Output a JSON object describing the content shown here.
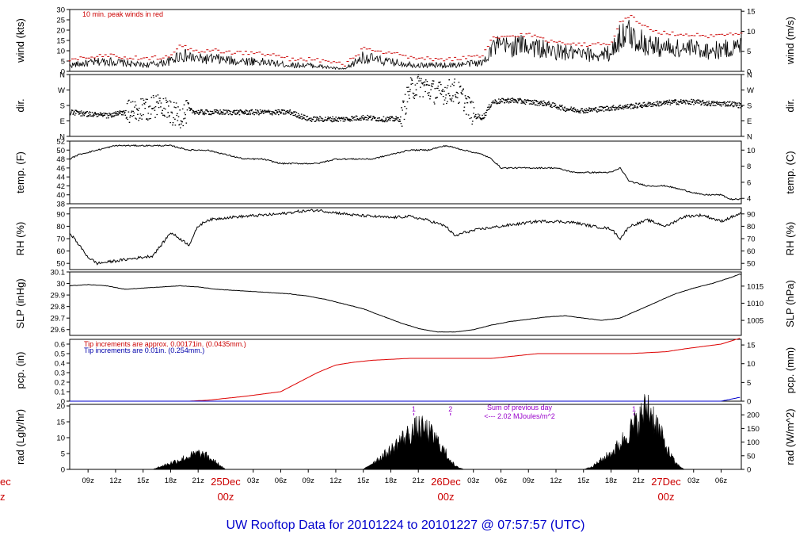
{
  "title": "UW Rooftop Data for 20101224  to  20101227 @ 07:57:57  (UTC)",
  "colors": {
    "black": "#000000",
    "peak": "#cc0000",
    "precip_red": "#dd0000",
    "precip_blue": "#0000cc",
    "purple": "#9900cc",
    "title": "#0000cc"
  },
  "x_ticks": [
    "09z",
    "12z",
    "15z",
    "18z",
    "21z",
    "03z",
    "06z",
    "09z",
    "12z",
    "15z",
    "18z",
    "21z",
    "03z",
    "06z",
    "09z",
    "12z",
    "15z",
    "18z",
    "21z",
    "03z",
    "06z"
  ],
  "x_tick_hours": [
    9,
    12,
    15,
    18,
    21,
    27,
    30,
    33,
    36,
    39,
    42,
    45,
    51,
    54,
    57,
    60,
    63,
    66,
    69,
    75,
    78
  ],
  "day_labels": [
    {
      "date": "25Dec",
      "hour": "00z",
      "at": 24
    },
    {
      "date": "26Dec",
      "hour": "00z",
      "at": 48
    },
    {
      "date": "27Dec",
      "hour": "00z",
      "at": 72
    }
  ],
  "left_edge_day": {
    "date": "ec",
    "hour": "z"
  },
  "chart_data": [
    {
      "type": "line",
      "name": "wind",
      "ylabel": "wind (kts)",
      "ylabel_right": "wind (m/s)",
      "ylim": [
        0,
        30
      ],
      "yticks": [
        0,
        5,
        10,
        15,
        20,
        25,
        30
      ],
      "right_ticks": [
        {
          "v": 0,
          "label": "0"
        },
        {
          "v": 9.72,
          "label": "5"
        },
        {
          "v": 19.44,
          "label": "10"
        },
        {
          "v": 29.16,
          "label": "15"
        }
      ],
      "annotation": "10 min. peak winds in red",
      "x_hours": [
        7,
        9,
        11,
        13,
        15,
        17,
        18,
        19,
        20,
        21,
        23,
        25,
        27,
        29,
        31,
        33,
        35,
        37,
        39,
        41,
        43,
        45,
        47,
        49,
        51,
        52,
        53,
        55,
        57,
        59,
        61,
        63,
        65,
        66,
        67,
        68,
        69,
        70,
        71,
        73,
        75,
        77,
        79,
        80
      ],
      "values": [
        3,
        4,
        5,
        4,
        3,
        4,
        5,
        8,
        7,
        6,
        6,
        5,
        5,
        4,
        3,
        3,
        2,
        1,
        7,
        5,
        4,
        3,
        3,
        3,
        4,
        4,
        12,
        12,
        13,
        10,
        9,
        8,
        8,
        9,
        17,
        18,
        15,
        13,
        12,
        11,
        11,
        10,
        11,
        12
      ],
      "peak_values": [
        6,
        7,
        8,
        7,
        6,
        7,
        8,
        13,
        11,
        10,
        10,
        9,
        9,
        8,
        6,
        6,
        5,
        3,
        11,
        9,
        8,
        6,
        6,
        6,
        7,
        7,
        16,
        17,
        18,
        15,
        14,
        13,
        13,
        14,
        24,
        27,
        24,
        21,
        19,
        18,
        18,
        17,
        18,
        19
      ]
    },
    {
      "type": "scatter",
      "name": "dir",
      "ylabel": "dir.",
      "ylabel_right": "dir.",
      "ylim": [
        0,
        360
      ],
      "yticks": [
        {
          "v": 0,
          "label": "N"
        },
        {
          "v": 90,
          "label": "E"
        },
        {
          "v": 180,
          "label": "S"
        },
        {
          "v": 270,
          "label": "W"
        },
        {
          "v": 360,
          "label": "N"
        }
      ],
      "x_hours": [
        7,
        9,
        11,
        13,
        15,
        16,
        17,
        18,
        19,
        20,
        21,
        23,
        25,
        27,
        29,
        31,
        33,
        35,
        37,
        39,
        41,
        43,
        44,
        45,
        46,
        47,
        48,
        49,
        50,
        51,
        52,
        53,
        55,
        57,
        59,
        61,
        63,
        65,
        67,
        69,
        71,
        73,
        75,
        77,
        79,
        80
      ],
      "values": [
        140,
        130,
        120,
        140,
        150,
        170,
        200,
        130,
        120,
        150,
        140,
        140,
        140,
        140,
        140,
        140,
        100,
        100,
        100,
        110,
        100,
        100,
        270,
        300,
        280,
        250,
        260,
        270,
        210,
        120,
        110,
        200,
        210,
        200,
        190,
        160,
        150,
        160,
        170,
        180,
        190,
        200,
        200,
        190,
        190,
        180
      ]
    },
    {
      "type": "line",
      "name": "temp",
      "ylabel": "temp. (F)",
      "ylabel_right": "temp. (C)",
      "ylim": [
        38,
        52
      ],
      "yticks": [
        38,
        40,
        42,
        44,
        46,
        48,
        50,
        52
      ],
      "right_ticks": [
        {
          "v": 39.2,
          "label": "4"
        },
        {
          "v": 42.8,
          "label": "6"
        },
        {
          "v": 46.4,
          "label": "8"
        },
        {
          "v": 50,
          "label": "10"
        }
      ],
      "x_hours": [
        7,
        8,
        10,
        12,
        14,
        16,
        18,
        20,
        22,
        24,
        26,
        28,
        30,
        32,
        34,
        36,
        38,
        40,
        42,
        44,
        46,
        48,
        50,
        52,
        53,
        54,
        56,
        58,
        60,
        62,
        64,
        66,
        67,
        68,
        70,
        72,
        74,
        76,
        78,
        79,
        80
      ],
      "values": [
        48,
        49,
        50,
        51,
        51,
        51,
        51,
        50,
        50,
        49,
        48,
        48,
        47,
        47,
        47,
        48,
        48,
        48,
        49,
        50,
        50,
        51,
        50,
        49,
        48,
        46,
        46,
        46,
        46,
        45,
        45,
        45,
        46,
        43,
        42,
        42,
        41,
        40,
        40,
        39,
        39
      ]
    },
    {
      "type": "line",
      "name": "rh",
      "ylabel": "RH (%)",
      "ylabel_right": "RH (%)",
      "ylim": [
        45,
        95
      ],
      "yticks": [
        50,
        60,
        70,
        80,
        90
      ],
      "right_ticks": [
        {
          "v": 50,
          "label": "50"
        },
        {
          "v": 60,
          "label": "60"
        },
        {
          "v": 70,
          "label": "70"
        },
        {
          "v": 80,
          "label": "80"
        },
        {
          "v": 90,
          "label": "90"
        }
      ],
      "x_hours": [
        7,
        8,
        9,
        10,
        12,
        14,
        16,
        17,
        18,
        19,
        20,
        21,
        22,
        24,
        26,
        28,
        30,
        32,
        34,
        36,
        38,
        40,
        42,
        44,
        46,
        48,
        49,
        50,
        52,
        54,
        56,
        58,
        60,
        62,
        64,
        66,
        67,
        68,
        70,
        72,
        74,
        76,
        78,
        80
      ],
      "values": [
        75,
        65,
        55,
        50,
        52,
        54,
        56,
        65,
        75,
        70,
        65,
        80,
        85,
        87,
        88,
        89,
        90,
        92,
        93,
        91,
        89,
        88,
        87,
        88,
        85,
        80,
        72,
        75,
        78,
        80,
        82,
        84,
        84,
        83,
        80,
        78,
        70,
        80,
        85,
        80,
        88,
        89,
        84,
        90
      ]
    },
    {
      "type": "line",
      "name": "slp",
      "ylabel": "SLP (inHg)",
      "ylabel_right": "SLP (hPa)",
      "ylim": [
        29.55,
        30.1
      ],
      "yticks": [
        29.6,
        29.7,
        29.8,
        29.9,
        30.0,
        30.1
      ],
      "right_ticks": [
        {
          "v": 29.68,
          "label": "1005"
        },
        {
          "v": 29.829,
          "label": "1010"
        },
        {
          "v": 29.977,
          "label": "1015"
        }
      ],
      "x_hours": [
        7,
        9,
        11,
        13,
        15,
        17,
        19,
        21,
        23,
        25,
        27,
        29,
        31,
        33,
        35,
        37,
        39,
        41,
        43,
        45,
        47,
        49,
        51,
        53,
        55,
        57,
        59,
        61,
        63,
        65,
        67,
        69,
        71,
        73,
        75,
        77,
        79,
        80
      ],
      "values": [
        29.98,
        29.99,
        29.98,
        29.95,
        29.96,
        29.97,
        29.98,
        29.97,
        29.95,
        29.94,
        29.93,
        29.92,
        29.91,
        29.89,
        29.86,
        29.82,
        29.78,
        29.72,
        29.66,
        29.61,
        29.58,
        29.58,
        29.6,
        29.64,
        29.67,
        29.69,
        29.71,
        29.72,
        29.7,
        29.68,
        29.7,
        29.77,
        29.84,
        29.91,
        29.96,
        30.0,
        30.05,
        30.08
      ]
    },
    {
      "type": "line",
      "name": "pcp",
      "ylabel": "pcp. (in)",
      "ylabel_right": "pcp. (mm)",
      "ylim": [
        0,
        0.65
      ],
      "yticks": [
        0,
        0.1,
        0.2,
        0.3,
        0.4,
        0.5,
        0.6
      ],
      "right_ticks": [
        {
          "v": 0,
          "label": "0"
        },
        {
          "v": 0.197,
          "label": "5"
        },
        {
          "v": 0.394,
          "label": "10"
        },
        {
          "v": 0.591,
          "label": "15"
        }
      ],
      "legend": [
        {
          "name": "Tip increments are approx. 0.00171in. (0.0435mm.)",
          "color": "#dd0000"
        },
        {
          "name": "Tip increments are 0.01in. (0.254mm.)",
          "color": "#0000cc"
        }
      ],
      "series": [
        {
          "x_hours": [
            7,
            15,
            20,
            22,
            26,
            30,
            32,
            34,
            36,
            38,
            40,
            42,
            44,
            48,
            52,
            53,
            55,
            58,
            62,
            66,
            68,
            72,
            74,
            78,
            79,
            80
          ],
          "values": [
            0,
            0,
            0,
            0.01,
            0.05,
            0.1,
            0.2,
            0.3,
            0.38,
            0.41,
            0.43,
            0.44,
            0.45,
            0.45,
            0.45,
            0.45,
            0.47,
            0.5,
            0.5,
            0.5,
            0.5,
            0.52,
            0.55,
            0.6,
            0.63,
            0.66
          ]
        },
        {
          "x_hours": [
            7,
            78,
            79,
            80
          ],
          "values": [
            0,
            0,
            0.02,
            0.04
          ]
        }
      ]
    },
    {
      "type": "area",
      "name": "rad",
      "ylabel": "rad (Lgly/hr)",
      "ylabel_right": "rad (W/m^2)",
      "ylim": [
        0,
        20.5
      ],
      "yticks": [
        0,
        5,
        10,
        15,
        20
      ],
      "right_ticks": [
        {
          "v": 0,
          "label": "0"
        },
        {
          "v": 4.3,
          "label": "50"
        },
        {
          "v": 8.6,
          "label": "100"
        },
        {
          "v": 12.9,
          "label": "150"
        },
        {
          "v": 17.2,
          "label": "200"
        }
      ],
      "annotations": [
        "Sum of previous day",
        "<--- 2.02 MJoules/m^2"
      ],
      "day_markers": [
        {
          "label": "1",
          "at": 44.5
        },
        {
          "label": "2",
          "at": 48.5
        },
        {
          "label": "1",
          "at": 68.5
        }
      ],
      "x_hours": [
        7,
        16,
        17,
        18,
        19,
        20,
        21,
        22,
        23,
        24,
        39,
        40,
        41,
        42,
        43,
        44,
        45,
        46,
        47,
        48,
        49,
        50,
        63,
        64,
        65,
        66,
        67,
        68,
        69,
        70,
        71,
        72,
        73,
        74
      ],
      "values": [
        0,
        0,
        1,
        2,
        3,
        4,
        5,
        4,
        2,
        0,
        0,
        2,
        4,
        6,
        9,
        11,
        13,
        12,
        9,
        5,
        1,
        0,
        0,
        1,
        3,
        5,
        8,
        12,
        15,
        20,
        14,
        7,
        2,
        0
      ]
    }
  ]
}
